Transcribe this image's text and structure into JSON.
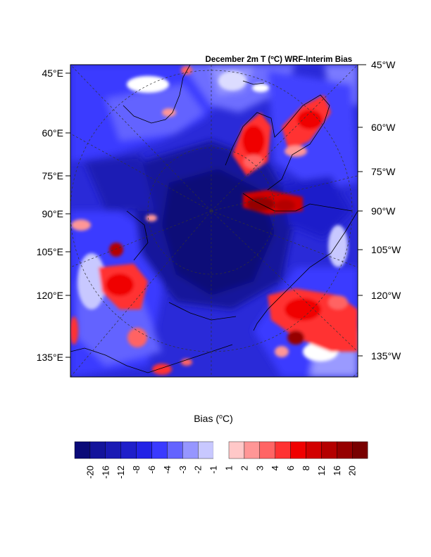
{
  "map": {
    "title_main": "December 2m T (",
    "title_sup": "o",
    "title_tail": "C) WRF-Interim Bias",
    "left_labels": [
      "45°E",
      "60°E",
      "75°E",
      "90°E",
      "105°E",
      "120°E",
      "135°E"
    ],
    "right_labels": [
      "45°W",
      "60°W",
      "75°W",
      "90°W",
      "105°W",
      "120°W",
      "135°W"
    ]
  },
  "colorbar": {
    "title_main": "Bias (",
    "title_sup": "o",
    "title_tail": "C)",
    "tick_labels": [
      "-20",
      "-16",
      "-12",
      "-8",
      "-6",
      "-4",
      "-3",
      "-2",
      "-1",
      "1",
      "2",
      "3",
      "4",
      "6",
      "8",
      "12",
      "16",
      "20"
    ],
    "colors": [
      "#0a0a78",
      "#14149b",
      "#1a1ab4",
      "#1f1fca",
      "#2323e6",
      "#3a3aff",
      "#6464ff",
      "#9696ff",
      "#c8c8ff",
      "#ffffff",
      "#ffc8c8",
      "#ff9696",
      "#ff6464",
      "#ff3232",
      "#f00000",
      "#d20000",
      "#b40000",
      "#960000",
      "#780000"
    ]
  }
}
